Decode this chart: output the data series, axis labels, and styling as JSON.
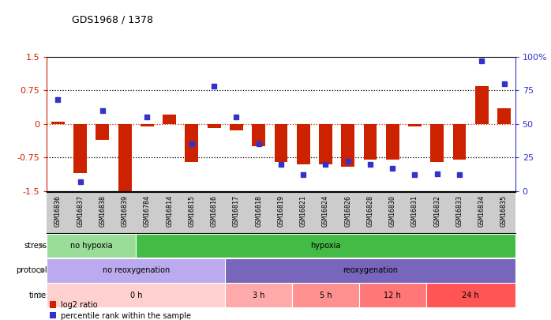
{
  "title": "GDS1968 / 1378",
  "samples": [
    "GSM16836",
    "GSM16837",
    "GSM16838",
    "GSM16839",
    "GSM16784",
    "GSM16814",
    "GSM16815",
    "GSM16816",
    "GSM16817",
    "GSM16818",
    "GSM16819",
    "GSM16821",
    "GSM16824",
    "GSM16826",
    "GSM16828",
    "GSM16830",
    "GSM16831",
    "GSM16832",
    "GSM16833",
    "GSM16834",
    "GSM16835"
  ],
  "log2ratio": [
    0.05,
    -1.1,
    -0.35,
    -1.5,
    -0.05,
    0.2,
    -0.85,
    -0.1,
    -0.15,
    -0.5,
    -0.85,
    -0.9,
    -0.9,
    -0.95,
    -0.8,
    -0.8,
    -0.05,
    -0.85,
    -0.8,
    0.85,
    0.35
  ],
  "percentile": [
    68,
    7,
    60,
    null,
    55,
    null,
    35,
    78,
    55,
    35,
    20,
    12,
    20,
    22,
    20,
    17,
    12,
    13,
    12,
    97,
    80
  ],
  "ylim_left": [
    -1.5,
    1.5
  ],
  "ylim_right": [
    0,
    100
  ],
  "yticks_left": [
    -1.5,
    -0.75,
    0,
    0.75,
    1.5
  ],
  "yticks_right": [
    0,
    25,
    50,
    75,
    100
  ],
  "ytick_labels_left": [
    "-1.5",
    "-0.75",
    "0",
    "0.75",
    "1.5"
  ],
  "ytick_labels_right": [
    "0",
    "25",
    "50",
    "75",
    "100%"
  ],
  "hlines": [
    -0.75,
    0.0,
    0.75
  ],
  "bar_color": "#cc2200",
  "dot_color": "#3333cc",
  "stress_groups": [
    {
      "label": "no hypoxia",
      "start": 0,
      "end": 4,
      "color": "#99dd99"
    },
    {
      "label": "hypoxia",
      "start": 4,
      "end": 21,
      "color": "#44bb44"
    }
  ],
  "protocol_groups": [
    {
      "label": "no reoxygenation",
      "start": 0,
      "end": 8,
      "color": "#bbaaee"
    },
    {
      "label": "reoxygenation",
      "start": 8,
      "end": 21,
      "color": "#7766bb"
    }
  ],
  "time_groups": [
    {
      "label": "0 h",
      "start": 0,
      "end": 8,
      "color": "#ffd0d0"
    },
    {
      "label": "3 h",
      "start": 8,
      "end": 11,
      "color": "#ffaaaa"
    },
    {
      "label": "5 h",
      "start": 11,
      "end": 14,
      "color": "#ff9090"
    },
    {
      "label": "12 h",
      "start": 14,
      "end": 17,
      "color": "#ff7777"
    },
    {
      "label": "24 h",
      "start": 17,
      "end": 21,
      "color": "#ff5555"
    }
  ],
  "legend_items": [
    {
      "label": "log2 ratio",
      "color": "#cc2200"
    },
    {
      "label": "percentile rank within the sample",
      "color": "#3333cc"
    }
  ],
  "row_labels": [
    "stress",
    "protocol",
    "time"
  ],
  "label_arrow_color": "#667766",
  "xticklabel_bg": "#cccccc",
  "chart_bg": "#ffffff"
}
